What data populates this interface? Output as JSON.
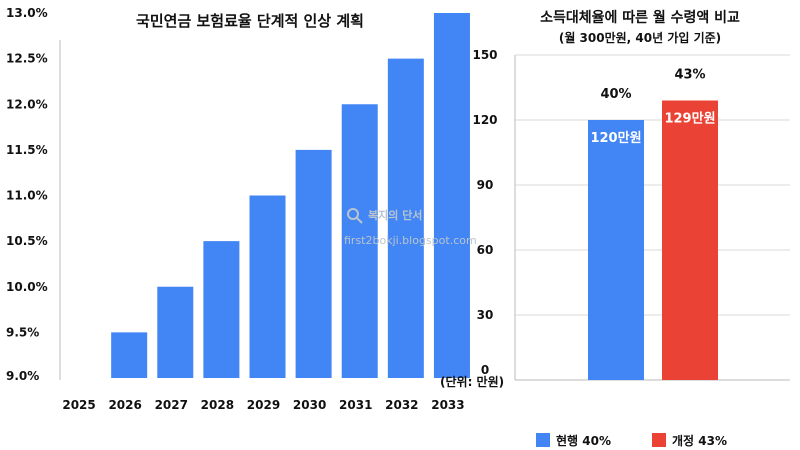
{
  "chart_data": [
    {
      "type": "bar",
      "title": "국민연금 보험료율 단계적 인상 계획",
      "categories": [
        "2025",
        "2026",
        "2027",
        "2028",
        "2029",
        "2030",
        "2031",
        "2032",
        "2033"
      ],
      "values": [
        9.0,
        9.5,
        10.0,
        10.5,
        11.0,
        11.5,
        12.0,
        12.5,
        13.0
      ],
      "ylim": [
        9.0,
        13.0
      ],
      "yticks": [
        "9.0%",
        "9.5%",
        "10.0%",
        "10.5%",
        "11.0%",
        "11.5%",
        "12.0%",
        "12.5%",
        "13.0%"
      ],
      "color": "#4285f4",
      "grid": false
    },
    {
      "type": "bar",
      "title": "소득대체율에 따른 월 수령액 비교",
      "subtitle": "(월 300만원, 40년 가입 기준)",
      "ylabel": "(단위: 만원)",
      "ylim": [
        0,
        150
      ],
      "yticks": [
        "0",
        "30",
        "60",
        "90",
        "120",
        "150"
      ],
      "grid": true,
      "legend_position": "bottom",
      "series": [
        {
          "name": "현행 40%",
          "values": [
            120
          ],
          "value_label": "120만원",
          "top_label": "40%",
          "color": "#4285f4"
        },
        {
          "name": "개정 43%",
          "values": [
            129
          ],
          "value_label": "129만원",
          "top_label": "43%",
          "color": "#ea4335"
        }
      ]
    }
  ],
  "watermark": {
    "title": "복지의 단서",
    "url": "first2bokji.blogspot.com"
  }
}
